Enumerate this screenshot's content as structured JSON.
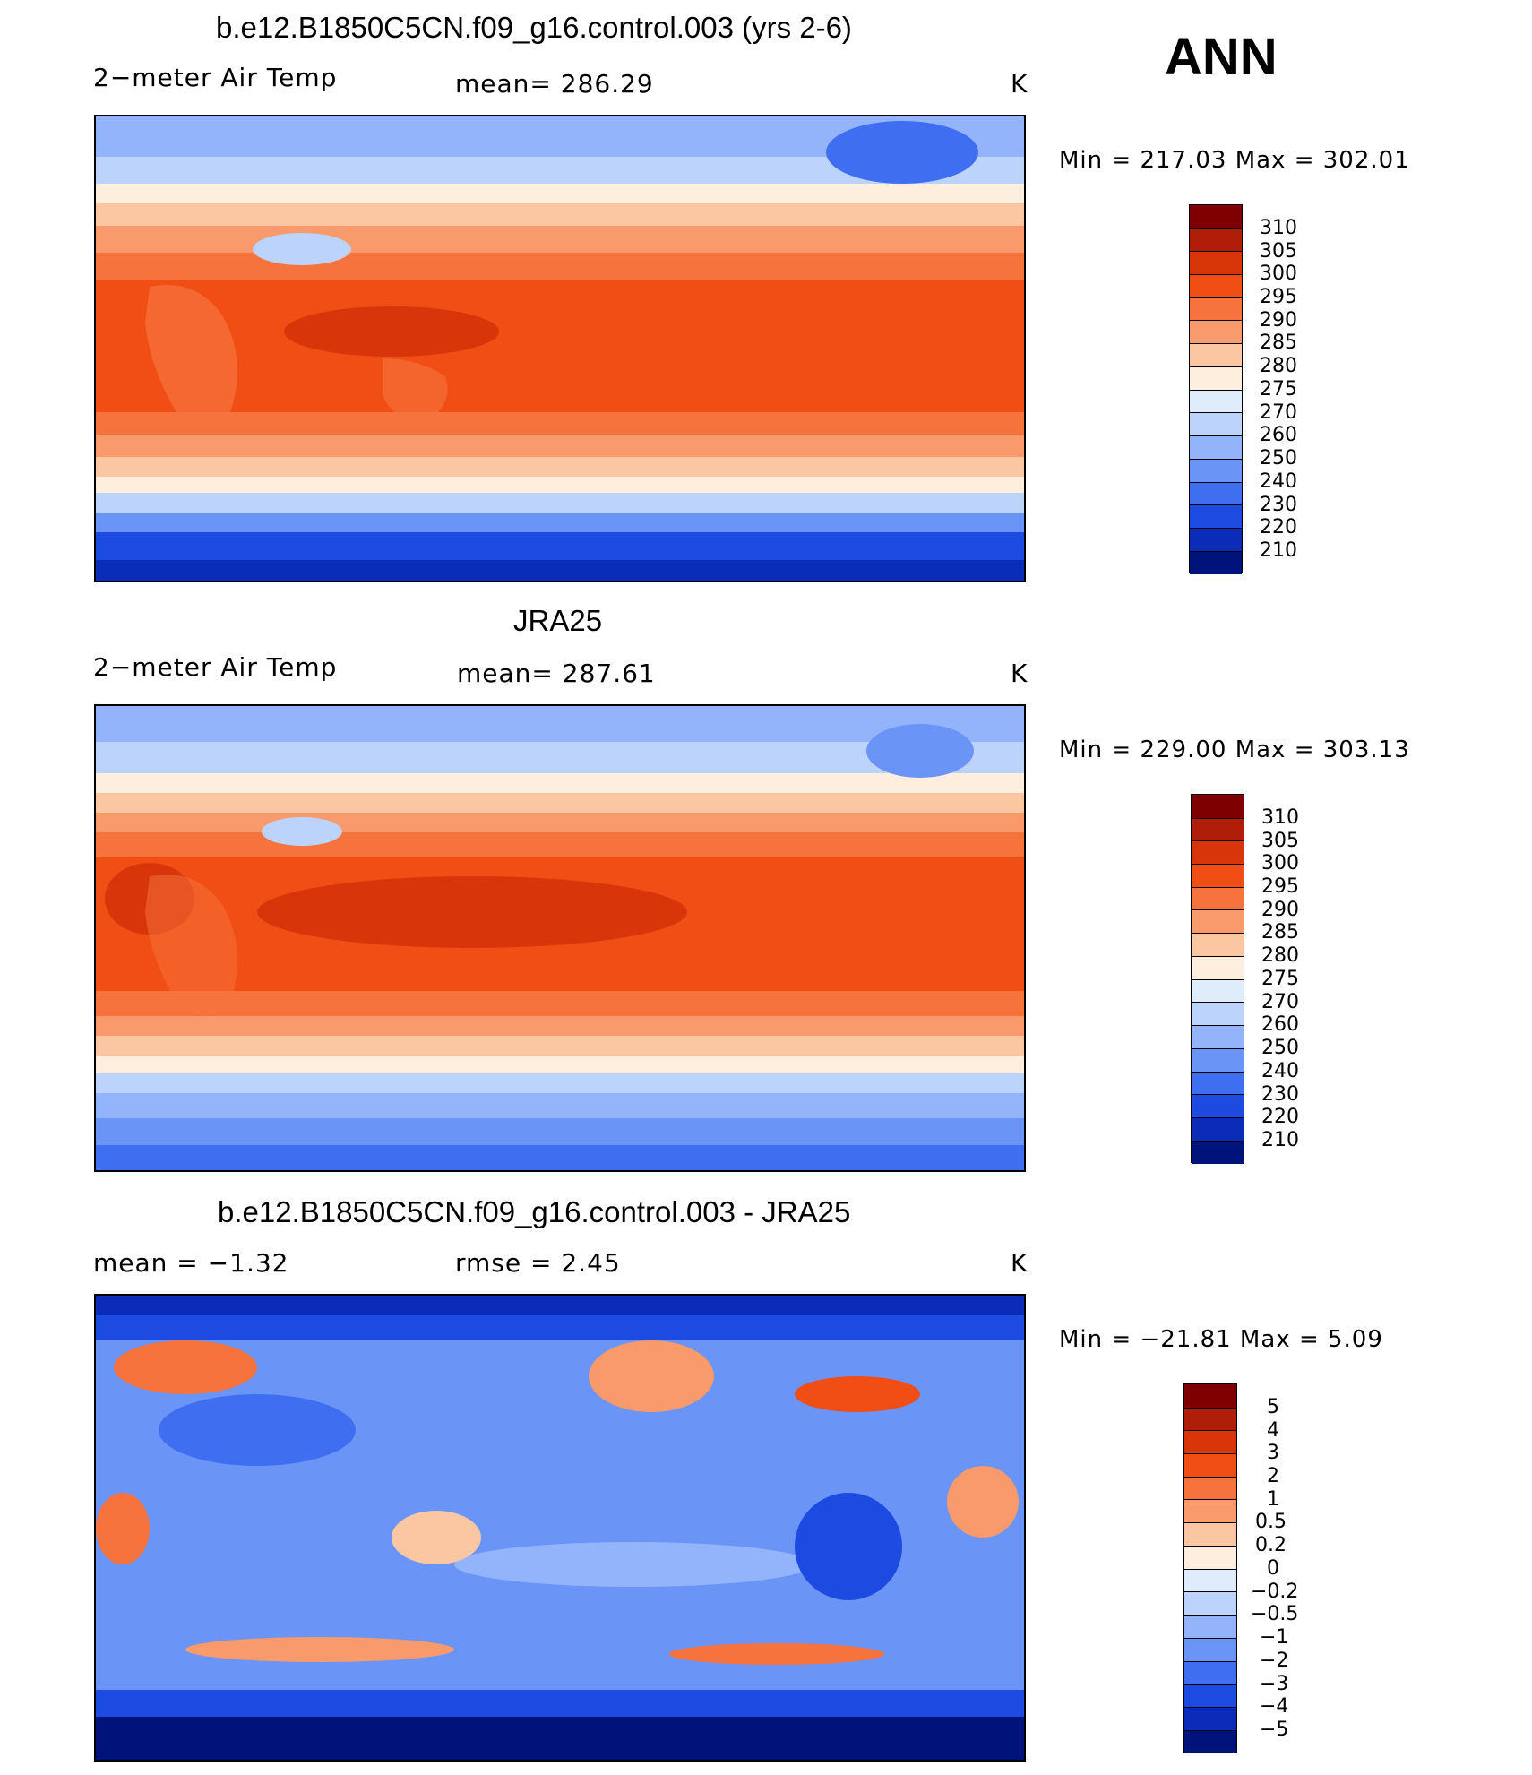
{
  "season_label": "ANN",
  "variable_name": "2−meter Air Temp",
  "units": "K",
  "panels": [
    {
      "id": "model",
      "title": "b.e12.B1850C5CN.f09_g16.control.003 (yrs 2-6)",
      "left_label": "2−meter Air Temp",
      "center_label": "mean=  286.29",
      "right_label": "K",
      "minmax": "Min  =  217.03  Max  =  302.01",
      "levels": [
        "310",
        "305",
        "300",
        "295",
        "290",
        "285",
        "280",
        "275",
        "270",
        "260",
        "250",
        "240",
        "230",
        "220",
        "210"
      ],
      "colors": [
        "#7f0000",
        "#b01e0a",
        "#d8360a",
        "#f04e14",
        "#f6733e",
        "#f89a6c",
        "#fbc6a2",
        "#feeedd",
        "#dfecfb",
        "#bcd3fb",
        "#93b4fa",
        "#6b94f7",
        "#3f6ef0",
        "#1d4ae0",
        "#0b2cb8",
        "#00137a"
      ]
    },
    {
      "id": "obs",
      "title": "JRA25",
      "left_label": "2−meter Air Temp",
      "center_label": "mean=  287.61",
      "right_label": "K",
      "minmax": "Min  =  229.00  Max  =  303.13",
      "levels": [
        "310",
        "305",
        "300",
        "295",
        "290",
        "285",
        "280",
        "275",
        "270",
        "260",
        "250",
        "240",
        "230",
        "220",
        "210"
      ],
      "colors": [
        "#7f0000",
        "#b01e0a",
        "#d8360a",
        "#f04e14",
        "#f6733e",
        "#f89a6c",
        "#fbc6a2",
        "#feeedd",
        "#dfecfb",
        "#bcd3fb",
        "#93b4fa",
        "#6b94f7",
        "#3f6ef0",
        "#1d4ae0",
        "#0b2cb8",
        "#00137a"
      ]
    },
    {
      "id": "diff",
      "title": "b.e12.B1850C5CN.f09_g16.control.003 - JRA25",
      "left_label": "mean  =    −1.32",
      "center_label": "rmse  =     2.45",
      "right_label": "K",
      "minmax": "Min  =  −21.81  Max  =     5.09",
      "levels": [
        "5",
        "4",
        "3",
        "2",
        "1",
        "0.5",
        "0.2",
        "0",
        "−0.2",
        "−0.5",
        "−1",
        "−2",
        "−3",
        "−4",
        "−5"
      ],
      "colors": [
        "#7f0000",
        "#b01e0a",
        "#d8360a",
        "#f04e14",
        "#f6733e",
        "#f89a6c",
        "#fbc6a2",
        "#feeedd",
        "#dfecfb",
        "#bcd3fb",
        "#93b4fa",
        "#6b94f7",
        "#3f6ef0",
        "#1d4ae0",
        "#0b2cb8",
        "#00137a"
      ]
    }
  ]
}
